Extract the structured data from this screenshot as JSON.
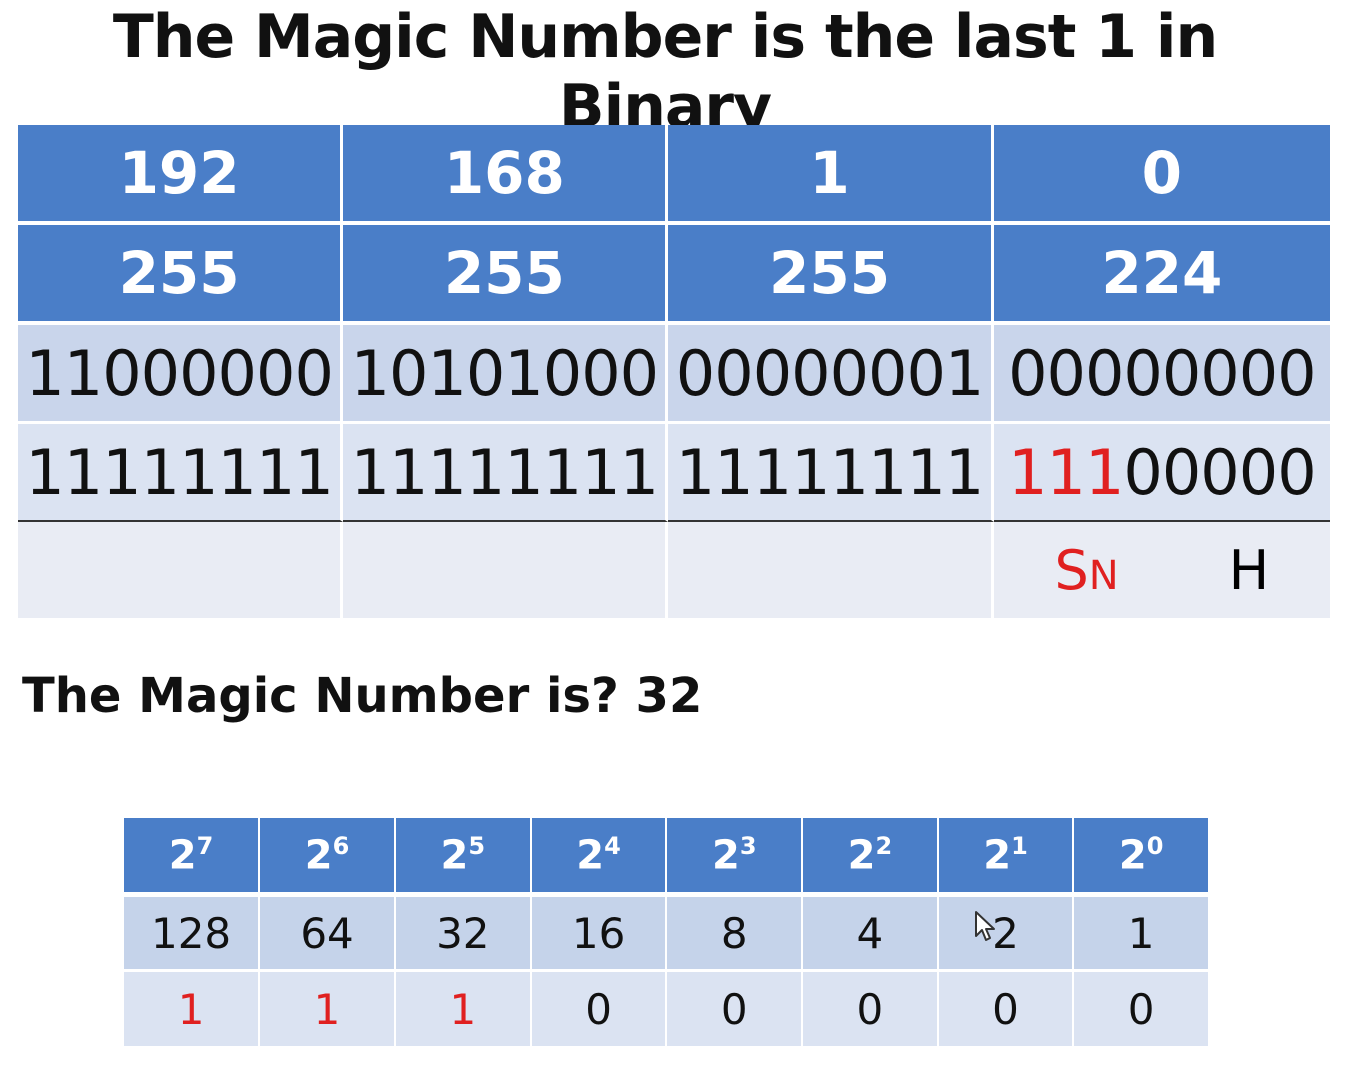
{
  "title": "The Magic Number is the last 1 in Binary",
  "ip_row": [
    "192",
    "168",
    "1",
    "0"
  ],
  "mask_row": [
    "255",
    "255",
    "255",
    "224"
  ],
  "ip_binary": [
    "11000000",
    "10101000",
    "00000001",
    "00000000"
  ],
  "mask_binary": [
    "11111111",
    "11111111",
    "11111111"
  ],
  "mask_binary_last": {
    "highlight": "111",
    "rest": "00000"
  },
  "footer": {
    "sn_s": "S",
    "sn_n": "N",
    "h": "H"
  },
  "question": "The Magic Number is? 32",
  "powers": {
    "base": "2",
    "exponents": [
      "7",
      "6",
      "5",
      "4",
      "3",
      "2",
      "1",
      "0"
    ],
    "values": [
      "128",
      "64",
      "32",
      "16",
      "8",
      "4",
      "2",
      "1"
    ],
    "bits": [
      "1",
      "1",
      "1",
      "0",
      "0",
      "0",
      "0",
      "0"
    ],
    "bit_colors": [
      "#e02020",
      "#e02020",
      "#e02020",
      "#111111",
      "#111111",
      "#111111",
      "#111111",
      "#111111"
    ]
  },
  "colors": {
    "header_blue": "#4a7ec8",
    "row_light": "#c5d3ea",
    "highlight_red": "#e02020"
  }
}
